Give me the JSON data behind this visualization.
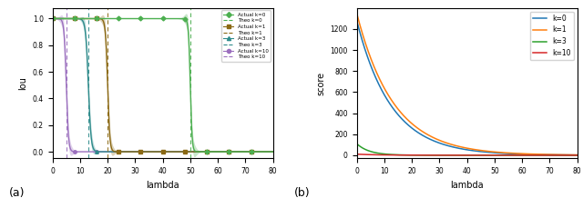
{
  "panel_a": {
    "xlabel": "lambda",
    "ylabel": "lou",
    "xlim": [
      0,
      80
    ],
    "k_values": [
      0,
      1,
      3,
      10
    ],
    "colors": {
      "0": "#4caf50",
      "1": "#8B6914",
      "3": "#2e8b8b",
      "10": "#9b6fbe"
    },
    "centers": {
      "0": 50,
      "1": 20,
      "3": 13,
      "10": 5
    },
    "steepness": {
      "0": 3.0,
      "1": 2.5,
      "3": 2.0,
      "10": 2.5
    },
    "markers": {
      "0": "D",
      "1": "s",
      "3": "^",
      "10": "o"
    }
  },
  "panel_b": {
    "xlabel": "lambda",
    "ylabel": "score",
    "xlim": [
      0,
      80
    ],
    "ylim": [
      -30,
      1400
    ],
    "yticks": [
      0,
      200,
      400,
      600,
      800,
      1000,
      1200
    ],
    "k_values": [
      0,
      1,
      3,
      10
    ],
    "colors": {
      "0": "#1f77b4",
      "1": "#ff7f0e",
      "3": "#2ca02c",
      "10": "#d62728"
    },
    "score_a": {
      "0": 1280,
      "1": 1350,
      "3": 110,
      "10": 10
    },
    "score_b": {
      "0": 0.08,
      "1": 0.075,
      "3": 0.22,
      "10": 0.12
    }
  },
  "label_a": "(a)",
  "label_b": "(b)"
}
